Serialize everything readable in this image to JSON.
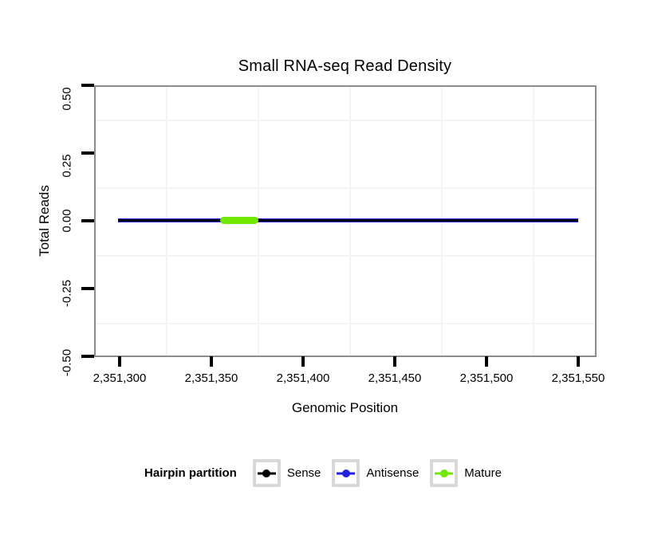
{
  "title": "Small RNA-seq Read Density",
  "chart_data": {
    "type": "line",
    "title": "Small RNA-seq Read Density",
    "xlabel": "Genomic Position",
    "ylabel": "Total Reads",
    "xlim": [
      2351286,
      2351562
    ],
    "ylim": [
      -0.5,
      0.5
    ],
    "x_ticks": [
      2351300,
      2351350,
      2351400,
      2351450,
      2351500,
      2351550
    ],
    "x_tick_labels": [
      "2,351,300",
      "2,351,350",
      "2,351,400",
      "2,351,450",
      "2,351,500",
      "2,351,550"
    ],
    "y_ticks": [
      0.5,
      0.25,
      0.0,
      -0.25,
      -0.5
    ],
    "y_tick_labels": [
      "0.50",
      "0.25",
      "0.00",
      "-0.25",
      "-0.50"
    ],
    "grid": "minor gridlines only, very light grey, between major ticks",
    "legend_position": "bottom",
    "series": [
      {
        "name": "Sense",
        "color": "#000000",
        "style": "line",
        "y_constant": 0,
        "x_start": 2351299,
        "x_end": 2351549
      },
      {
        "name": "Antisense",
        "color": "#2222DD",
        "style": "line",
        "y_constant": 0,
        "x_start": 2351299,
        "x_end": 2351549
      },
      {
        "name": "Mature",
        "color": "#70E800",
        "style": "thick-segment",
        "y_constant": 0,
        "x_start": 2351355,
        "x_end": 2351375
      }
    ]
  },
  "legend": {
    "title": "Hairpin partition",
    "items": [
      {
        "label": "Sense",
        "color": "#000000"
      },
      {
        "label": "Antisense",
        "color": "#2222DD"
      },
      {
        "label": "Mature",
        "color": "#70E800"
      }
    ]
  },
  "colors": {
    "panel_border": "#8C8C8C",
    "gridline": "#F4F4F4",
    "axis_tick": "#000000",
    "legend_key_border": "#D8D8D8",
    "background": "#FFFFFF"
  }
}
